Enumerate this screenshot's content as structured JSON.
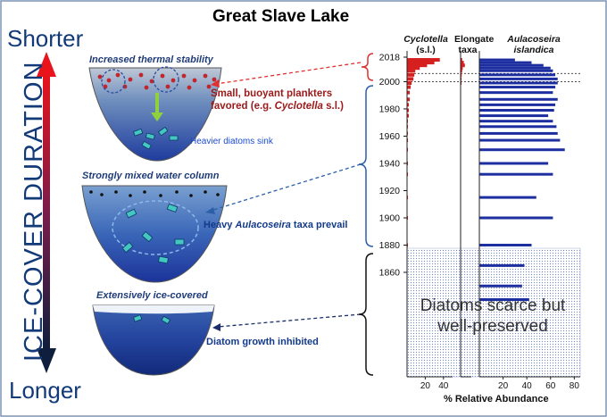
{
  "title": "Great Slave Lake",
  "scale": {
    "top": "Shorter",
    "bottom": "Longer",
    "axis_label": "ICE-COVER DURATION"
  },
  "lakes": [
    {
      "title": "Increased thermal stability",
      "annotation": [
        "Small, buoyant plankters",
        "favored (e.g. ",
        "Cyclotella",
        " s.l.)"
      ],
      "sub_note": "Heavier diatoms sink"
    },
    {
      "title": "Strongly mixed water column",
      "annotation": [
        "Heavy ",
        "Aulacoseira",
        " taxa prevail"
      ]
    },
    {
      "title": "Extensively ice-covered",
      "annotation": [
        "Diatom growth inhibited"
      ]
    }
  ],
  "columns": [
    {
      "name": "Cyclotella",
      "suffix": "(s.l.)"
    },
    {
      "name": "Elongate",
      "suffix": "taxa"
    },
    {
      "name": "Aulacoseira",
      "suffix": "islandica"
    }
  ],
  "scarce_note": "Diatoms scarce but well-preserved",
  "x_axis_title": "% Relative Abundance",
  "colors": {
    "cyclotella": "#d62020",
    "aulacoseira": "#1c2ea0",
    "dashed_red": "#e03030",
    "dashed_blue": "#2b5fa8"
  },
  "chart_data": {
    "type": "bar",
    "orientation": "horizontal",
    "y_label": "",
    "year_ticks": [
      2018,
      2000,
      1980,
      1960,
      1940,
      1920,
      1900,
      1880,
      1860
    ],
    "reference_years": [
      2006,
      2000
    ],
    "x_ticks": {
      "cyclotella": [
        20,
        40
      ],
      "elongate": [],
      "aulacoseira": [
        20,
        40,
        60,
        80
      ]
    },
    "x_ranges": {
      "cyclotella": [
        0,
        50
      ],
      "elongate": [
        0,
        20
      ],
      "aulacoseira": [
        0,
        85
      ]
    },
    "samples": [
      {
        "year": 2016,
        "cyclotella": 36,
        "elongate": 3,
        "aulacoseira": 30
      },
      {
        "year": 2014,
        "cyclotella": 30,
        "elongate": 6,
        "aulacoseira": 44
      },
      {
        "year": 2012,
        "cyclotella": 22,
        "elongate": 8,
        "aulacoseira": 54
      },
      {
        "year": 2010,
        "cyclotella": 14,
        "elongate": 4,
        "aulacoseira": 60
      },
      {
        "year": 2008,
        "cyclotella": 9,
        "elongate": 3,
        "aulacoseira": 62
      },
      {
        "year": 2005,
        "cyclotella": 8,
        "elongate": 2,
        "aulacoseira": 64
      },
      {
        "year": 2002,
        "cyclotella": 7,
        "elongate": 1,
        "aulacoseira": 66
      },
      {
        "year": 1999,
        "cyclotella": 5,
        "elongate": 1,
        "aulacoseira": 66
      },
      {
        "year": 1996,
        "cyclotella": 4,
        "elongate": 0,
        "aulacoseira": 64
      },
      {
        "year": 1992,
        "cyclotella": 3,
        "elongate": 0,
        "aulacoseira": 62
      },
      {
        "year": 1987,
        "cyclotella": 3,
        "elongate": 0,
        "aulacoseira": 66
      },
      {
        "year": 1983,
        "cyclotella": 2,
        "elongate": 0,
        "aulacoseira": 64
      },
      {
        "year": 1979,
        "cyclotella": 2,
        "elongate": 0,
        "aulacoseira": 63
      },
      {
        "year": 1975,
        "cyclotella": 2,
        "elongate": 0,
        "aulacoseira": 58
      },
      {
        "year": 1971,
        "cyclotella": 1,
        "elongate": 0,
        "aulacoseira": 62
      },
      {
        "year": 1967,
        "cyclotella": 1,
        "elongate": 0,
        "aulacoseira": 65
      },
      {
        "year": 1962,
        "cyclotella": 1,
        "elongate": 0,
        "aulacoseira": 66
      },
      {
        "year": 1957,
        "cyclotella": 1,
        "elongate": 0,
        "aulacoseira": 68
      },
      {
        "year": 1950,
        "cyclotella": 1,
        "elongate": 0,
        "aulacoseira": 72
      },
      {
        "year": 1940,
        "cyclotella": 1,
        "elongate": 0,
        "aulacoseira": 58
      },
      {
        "year": 1932,
        "cyclotella": 1,
        "elongate": 0,
        "aulacoseira": 62
      },
      {
        "year": 1915,
        "cyclotella": 1,
        "elongate": 0,
        "aulacoseira": 48
      },
      {
        "year": 1900,
        "cyclotella": 1,
        "elongate": 0,
        "aulacoseira": 62
      },
      {
        "year": 1880,
        "cyclotella": 1,
        "elongate": 0,
        "aulacoseira": 44
      },
      {
        "year": 1865,
        "cyclotella": 0,
        "elongate": 0,
        "aulacoseira": 38
      },
      {
        "year": 1850,
        "cyclotella": 0,
        "elongate": 0,
        "aulacoseira": 36
      },
      {
        "year": 1840,
        "cyclotella": 0,
        "elongate": 0,
        "aulacoseira": 42
      }
    ]
  }
}
